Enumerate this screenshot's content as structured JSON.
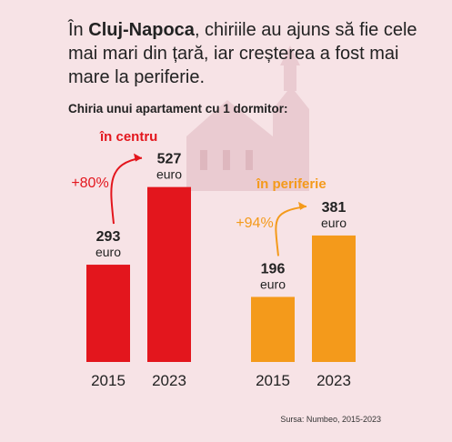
{
  "headline": {
    "prefix": "În ",
    "city": "Cluj-Napoca",
    "rest": ", chiriile au ajuns să fie cele mai mari din țară, iar creșterea a fost mai mare la periferie."
  },
  "subtitle": "Chiria unui apartament cu 1 dormitor:",
  "source": "Sursa: Numbeo, 2015-2023",
  "unit": "euro",
  "colors": {
    "centru": "#e3161d",
    "periferie": "#f49a1b",
    "background": "#f7e3e6"
  },
  "chart_data": {
    "type": "bar",
    "categories": [
      "2015",
      "2023"
    ],
    "series": [
      {
        "name": "în centru",
        "values": [
          293,
          527
        ],
        "change": "+80%"
      },
      {
        "name": "în periferie",
        "values": [
          196,
          381
        ],
        "change": "+94%"
      }
    ]
  }
}
